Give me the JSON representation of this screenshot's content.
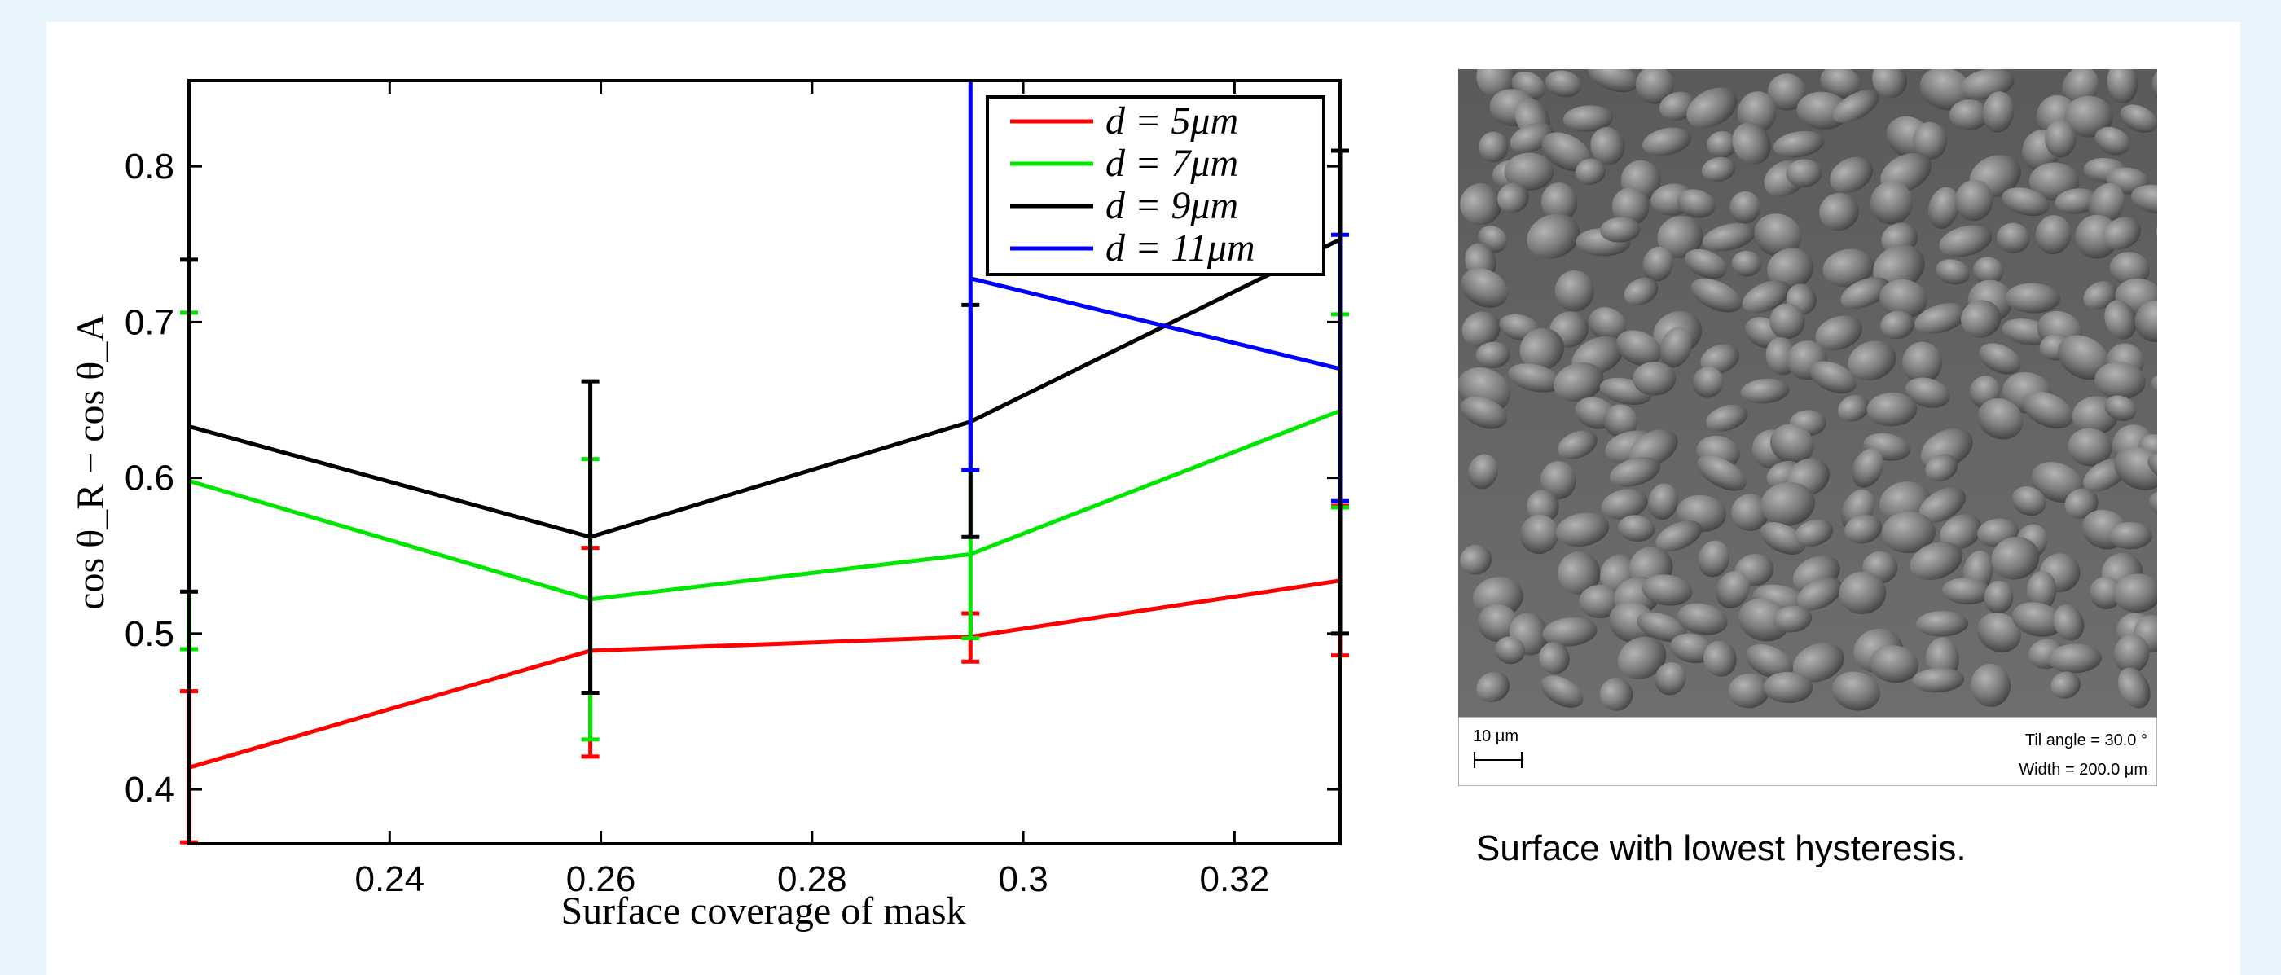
{
  "chart_data": {
    "type": "line",
    "title": "",
    "xlabel": "Surface coverage of mask",
    "ylabel": "cos θ_R − cos θ_A",
    "xlim": [
      0.221,
      0.33
    ],
    "ylim": [
      0.365,
      0.855
    ],
    "x_ticks": [
      0.24,
      0.26,
      0.28,
      0.3,
      0.32
    ],
    "x_tick_labels": [
      "0.24",
      "0.26",
      "0.28",
      "0.3",
      "0.32"
    ],
    "y_ticks": [
      0.4,
      0.5,
      0.6,
      0.7,
      0.8
    ],
    "y_tick_labels": [
      "0.4",
      "0.5",
      "0.6",
      "0.7",
      "0.8"
    ],
    "grid": false,
    "legend_position": "top-right",
    "series": [
      {
        "name": "d = 5μm",
        "color": "#ff0000",
        "x": [
          0.221,
          0.259,
          0.295,
          0.33
        ],
        "y": [
          0.414,
          0.489,
          0.498,
          0.534
        ],
        "err_low": [
          0.366,
          0.421,
          0.482,
          0.486
        ],
        "err_high": [
          0.463,
          0.555,
          0.513,
          0.582
        ]
      },
      {
        "name": "d = 7μm",
        "color": "#00e600",
        "x": [
          0.221,
          0.259,
          0.295,
          0.33
        ],
        "y": [
          0.598,
          0.522,
          0.551,
          0.643
        ],
        "err_low": [
          0.49,
          0.432,
          0.497,
          0.581
        ],
        "err_high": [
          0.706,
          0.612,
          0.605,
          0.705
        ]
      },
      {
        "name": "d = 9μm",
        "color": "#000000",
        "x": [
          0.221,
          0.259,
          0.295,
          0.33
        ],
        "y": [
          0.633,
          0.562,
          0.636,
          0.753
        ],
        "err_low": [
          0.527,
          0.462,
          0.562,
          0.5
        ],
        "err_high": [
          0.74,
          0.662,
          0.711,
          0.81
        ]
      },
      {
        "name": "d = 11μm",
        "color": "#0000ff",
        "x": [
          0.295,
          0.33
        ],
        "y": [
          0.728,
          0.67
        ],
        "err_low": [
          0.605,
          0.585
        ],
        "err_high": [
          0.855,
          0.756
        ]
      }
    ]
  },
  "image_panel": {
    "scale_bar_label": "10 μm",
    "tilt_label": "Til angle = 30.0 °",
    "width_label": "Width = 200.0 μm",
    "caption": "Surface with lowest hysteresis."
  }
}
